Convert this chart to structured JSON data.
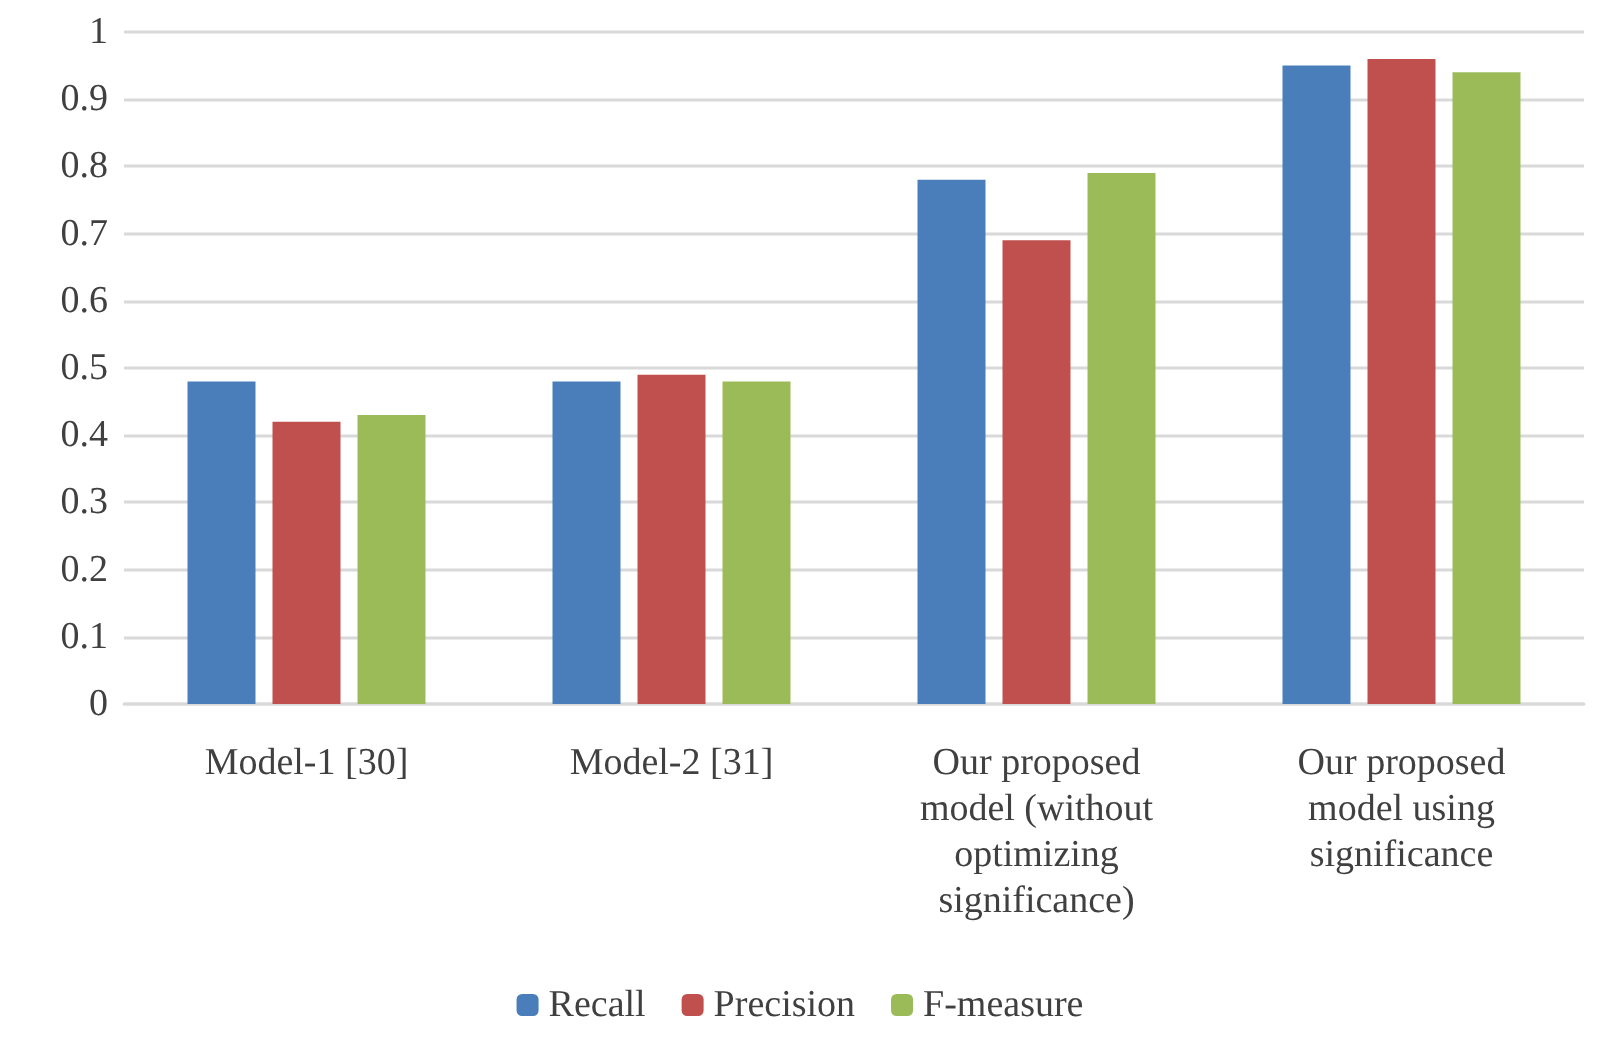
{
  "chart_data": {
    "type": "bar",
    "categories": [
      "Model-1 [30]",
      "Model-2 [31]",
      "Our proposed\nmodel (without\noptimizing\nsignificance)",
      "Our proposed\nmodel using\nsignificance"
    ],
    "series": [
      {
        "name": "Recall",
        "color": "#4a7ebb",
        "values": [
          0.48,
          0.48,
          0.78,
          0.95
        ]
      },
      {
        "name": "Precision",
        "color": "#c0504d",
        "values": [
          0.42,
          0.49,
          0.69,
          0.96
        ]
      },
      {
        "name": "F-measure",
        "color": "#9bbb59",
        "values": [
          0.43,
          0.48,
          0.79,
          0.94
        ]
      }
    ],
    "ylim": [
      0,
      1
    ],
    "yticks": [
      0,
      0.1,
      0.2,
      0.3,
      0.4,
      0.5,
      0.6,
      0.7,
      0.8,
      0.9,
      1
    ],
    "grid": "y",
    "legend": "bottom"
  }
}
